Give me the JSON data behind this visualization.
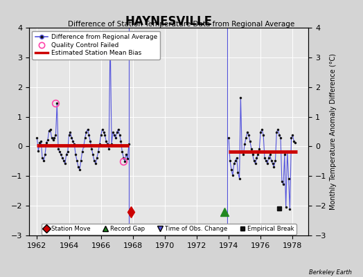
{
  "title": "HAYNESVILLE",
  "subtitle": "Difference of Station Temperature Data from Regional Average",
  "ylabel_right": "Monthly Temperature Anomaly Difference (°C)",
  "xlim": [
    1961.5,
    1979.0
  ],
  "ylim": [
    -3,
    4
  ],
  "yticks": [
    -3,
    -2,
    -1,
    0,
    1,
    2,
    3,
    4
  ],
  "xticks": [
    1962,
    1964,
    1966,
    1968,
    1970,
    1972,
    1974,
    1976,
    1978
  ],
  "background_color": "#d4d4d4",
  "plot_bg_color": "#e6e6e6",
  "line_color": "#5555dd",
  "dot_color": "#111111",
  "bias_color": "#cc0000",
  "bias_level_1": 0.03,
  "bias_level_2": -0.18,
  "bias_period_1": [
    1962.0,
    1967.75
  ],
  "bias_period_2": [
    1974.0,
    1978.3
  ],
  "vline1_x": 1967.75,
  "vline2_x": 1973.9,
  "station_move_x": 1967.9,
  "station_move_y": -2.2,
  "record_gap_x": 1973.75,
  "record_gap_y": -2.2,
  "qc_fail_x1": 1963.17,
  "qc_fail_y1": 1.45,
  "qc_fail_x2": 1967.42,
  "qc_fail_y2": -0.5,
  "empirical_break_x": 1977.17,
  "empirical_break_y": -2.1,
  "series1_x": [
    1962.0,
    1962.08,
    1962.17,
    1962.25,
    1962.33,
    1962.42,
    1962.5,
    1962.58,
    1962.67,
    1962.75,
    1962.83,
    1962.92,
    1963.0,
    1963.08,
    1963.17,
    1963.25,
    1963.33,
    1963.42,
    1963.5,
    1963.58,
    1963.67,
    1963.75,
    1963.83,
    1963.92,
    1964.0,
    1964.08,
    1964.17,
    1964.25,
    1964.33,
    1964.42,
    1964.5,
    1964.58,
    1964.67,
    1964.75,
    1964.83,
    1964.92,
    1965.0,
    1965.08,
    1965.17,
    1965.25,
    1965.33,
    1965.42,
    1965.5,
    1965.58,
    1965.67,
    1965.75,
    1965.83,
    1965.92,
    1966.0,
    1966.08,
    1966.17,
    1966.25,
    1966.33,
    1966.42,
    1966.5,
    1966.58,
    1966.67,
    1966.75,
    1966.83,
    1966.92,
    1967.0,
    1967.08,
    1967.17,
    1967.25,
    1967.33,
    1967.42,
    1967.5,
    1967.58,
    1967.67,
    1967.75
  ],
  "series1_y": [
    0.28,
    -0.15,
    0.12,
    0.18,
    -0.38,
    -0.48,
    -0.28,
    0.12,
    0.22,
    0.52,
    0.58,
    0.28,
    0.22,
    0.28,
    0.38,
    1.45,
    -0.08,
    -0.18,
    -0.28,
    -0.38,
    -0.48,
    -0.58,
    -0.28,
    -0.18,
    0.38,
    0.48,
    0.28,
    0.18,
    0.08,
    -0.28,
    -0.48,
    -0.68,
    -0.78,
    -0.48,
    -0.18,
    0.0,
    0.28,
    0.48,
    0.58,
    0.38,
    0.18,
    -0.08,
    -0.28,
    -0.48,
    -0.58,
    -0.38,
    -0.18,
    0.08,
    0.38,
    0.58,
    0.48,
    0.38,
    0.18,
    0.08,
    -0.08,
    3.75,
    0.08,
    0.48,
    0.38,
    0.28,
    0.48,
    0.58,
    0.38,
    0.18,
    -0.18,
    -0.38,
    -0.5,
    -0.28,
    -0.42,
    0.08
  ],
  "series2_x": [
    1974.0,
    1974.08,
    1974.17,
    1974.25,
    1974.33,
    1974.42,
    1974.5,
    1974.58,
    1974.67,
    1974.75,
    1974.83,
    1974.92,
    1975.0,
    1975.08,
    1975.17,
    1975.25,
    1975.33,
    1975.42,
    1975.5,
    1975.58,
    1975.67,
    1975.75,
    1975.83,
    1975.92,
    1976.0,
    1976.08,
    1976.17,
    1976.25,
    1976.33,
    1976.42,
    1976.5,
    1976.58,
    1976.67,
    1976.75,
    1976.83,
    1976.92,
    1977.0,
    1977.08,
    1977.17,
    1977.25,
    1977.33,
    1977.42,
    1977.5,
    1977.58,
    1977.67,
    1977.75,
    1977.83,
    1977.92,
    1978.0,
    1978.08,
    1978.17
  ],
  "series2_y": [
    0.28,
    -0.48,
    -0.78,
    -0.98,
    -0.58,
    -0.48,
    -0.38,
    -0.88,
    -1.08,
    1.65,
    -0.18,
    -0.28,
    0.08,
    0.28,
    0.48,
    0.38,
    0.18,
    -0.08,
    -0.28,
    -0.48,
    -0.58,
    -0.38,
    -0.28,
    -0.08,
    0.48,
    0.58,
    0.38,
    -0.38,
    -0.48,
    -0.58,
    -0.38,
    -0.28,
    -0.48,
    -0.58,
    -0.68,
    -0.48,
    0.48,
    0.58,
    0.38,
    0.28,
    -1.18,
    -1.28,
    -0.28,
    -2.05,
    -0.18,
    -1.08,
    -2.12,
    0.28,
    0.38,
    0.18,
    0.12
  ]
}
